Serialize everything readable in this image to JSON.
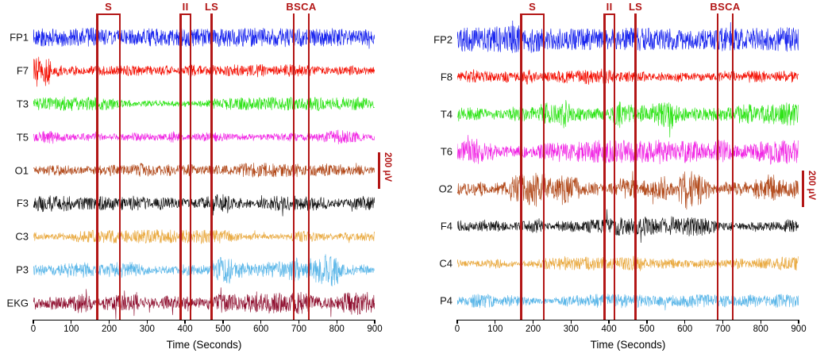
{
  "chart_data": [
    {
      "type": "line",
      "panel": "left",
      "xlabel": "Time (Seconds)",
      "xlim": [
        0,
        900
      ],
      "xticks": [
        0,
        100,
        200,
        300,
        400,
        500,
        600,
        700,
        800,
        900
      ],
      "marker_color": "#b31616",
      "channels": [
        {
          "label": "FP1",
          "color": "#1420ee",
          "amplitude": 9,
          "profile": "dense"
        },
        {
          "label": "F7",
          "color": "#f40d00",
          "amplitude": 8,
          "profile": "normal",
          "start_transient": true
        },
        {
          "label": "T3",
          "color": "#2ae313",
          "amplitude": 5.5,
          "profile": "normal"
        },
        {
          "label": "T5",
          "color": "#f126e4",
          "amplitude": 6,
          "profile": "normal"
        },
        {
          "label": "O1",
          "color": "#b24a1b",
          "amplitude": 5.5,
          "profile": "normal"
        },
        {
          "label": "F3",
          "color": "#111111",
          "amplitude": 7.5,
          "profile": "normal"
        },
        {
          "label": "C3",
          "color": "#e9a93f",
          "amplitude": 5.5,
          "profile": "normal"
        },
        {
          "label": "P3",
          "color": "#5ab6e8",
          "amplitude": 6.5,
          "profile": "bursty",
          "burst_range": [
            0.5,
            1.0
          ]
        },
        {
          "label": "EKG",
          "color": "#8f1030",
          "amplitude": 9,
          "profile": "ekg"
        }
      ],
      "markers": [
        {
          "label": "S",
          "seconds": [
            168,
            228
          ]
        },
        {
          "label": "II",
          "seconds": [
            388,
            414
          ]
        },
        {
          "label": "LS",
          "seconds": [
            470
          ]
        },
        {
          "label": "BS",
          "seconds": [
            686
          ]
        },
        {
          "label": "CA",
          "seconds": [
            726
          ]
        }
      ],
      "scale_bar": {
        "label": "200 μV",
        "at_channel": "O1"
      }
    },
    {
      "type": "line",
      "panel": "right",
      "xlabel": "Time (Seconds)",
      "xlim": [
        0,
        900
      ],
      "xticks": [
        0,
        100,
        200,
        300,
        400,
        500,
        600,
        700,
        800,
        900
      ],
      "marker_color": "#b31616",
      "channels": [
        {
          "label": "FP2",
          "color": "#1420ee",
          "amplitude": 13,
          "profile": "dense"
        },
        {
          "label": "F8",
          "color": "#f40d00",
          "amplitude": 8,
          "profile": "normal"
        },
        {
          "label": "T4",
          "color": "#2ae313",
          "amplitude": 9,
          "profile": "bursty",
          "burst_range": [
            0.05,
            0.75
          ]
        },
        {
          "label": "T6",
          "color": "#f126e4",
          "amplitude": 10,
          "profile": "normal"
        },
        {
          "label": "O2",
          "color": "#b24a1b",
          "amplitude": 8.5,
          "profile": "bursty",
          "burst_range": [
            0.05,
            0.95
          ]
        },
        {
          "label": "F4",
          "color": "#111111",
          "amplitude": 7.5,
          "profile": "normal"
        },
        {
          "label": "C4",
          "color": "#e9a93f",
          "amplitude": 6.5,
          "profile": "normal"
        },
        {
          "label": "P4",
          "color": "#5ab6e8",
          "amplitude": 5.5,
          "profile": "normal"
        }
      ],
      "markers": [
        {
          "label": "S",
          "seconds": [
            168,
            228
          ]
        },
        {
          "label": "II",
          "seconds": [
            388,
            414
          ]
        },
        {
          "label": "LS",
          "seconds": [
            470
          ]
        },
        {
          "label": "BS",
          "seconds": [
            686
          ]
        },
        {
          "label": "CA",
          "seconds": [
            726
          ]
        }
      ],
      "scale_bar": {
        "label": "200 μV",
        "at_channel": "O2"
      }
    }
  ]
}
